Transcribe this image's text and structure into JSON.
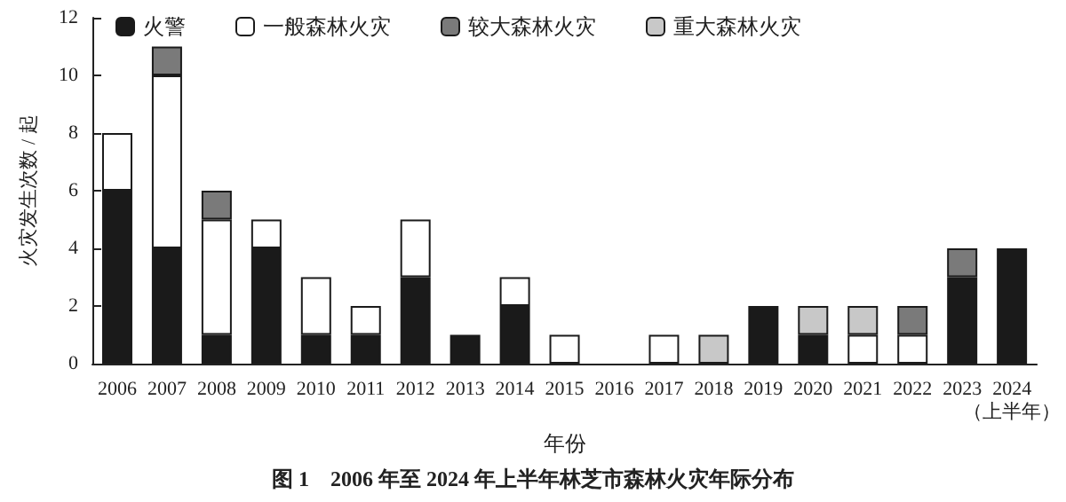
{
  "chart_data": {
    "type": "bar",
    "stacked": true,
    "title": "图 1　2006 年至 2024 年上半年林芝市森林火灾年际分布",
    "xlabel": "年份",
    "ylabel": "火灾发生次数 / 起",
    "categories": [
      "2006",
      "2007",
      "2008",
      "2009",
      "2010",
      "2011",
      "2012",
      "2013",
      "2014",
      "2015",
      "2016",
      "2017",
      "2018",
      "2019",
      "2020",
      "2021",
      "2022",
      "2023",
      "2024\n（上半年）"
    ],
    "series": [
      {
        "name": "火警",
        "color": "#1a1a1a",
        "values": [
          6,
          4,
          1,
          4,
          1,
          1,
          3,
          1,
          2,
          0,
          0,
          0,
          0,
          2,
          1,
          0,
          0,
          3,
          4
        ]
      },
      {
        "name": "一般森林火灾",
        "color": "#ffffff",
        "values": [
          2,
          6,
          4,
          1,
          2,
          1,
          2,
          0,
          1,
          1,
          0,
          1,
          0,
          0,
          0,
          1,
          1,
          0,
          0
        ]
      },
      {
        "name": "较大森林火灾",
        "color": "#7a7a7a",
        "values": [
          0,
          1,
          1,
          0,
          0,
          0,
          0,
          0,
          0,
          0,
          0,
          0,
          0,
          0,
          0,
          0,
          1,
          1,
          0
        ]
      },
      {
        "name": "重大森林火灾",
        "color": "#c8c8c8",
        "values": [
          0,
          0,
          0,
          0,
          0,
          0,
          0,
          0,
          0,
          0,
          0,
          0,
          1,
          0,
          1,
          1,
          0,
          0,
          0
        ]
      }
    ],
    "ylim": [
      0,
      12
    ],
    "yticks": [
      0,
      2,
      4,
      6,
      8,
      10,
      12
    ],
    "grid": false,
    "legend": "top"
  }
}
